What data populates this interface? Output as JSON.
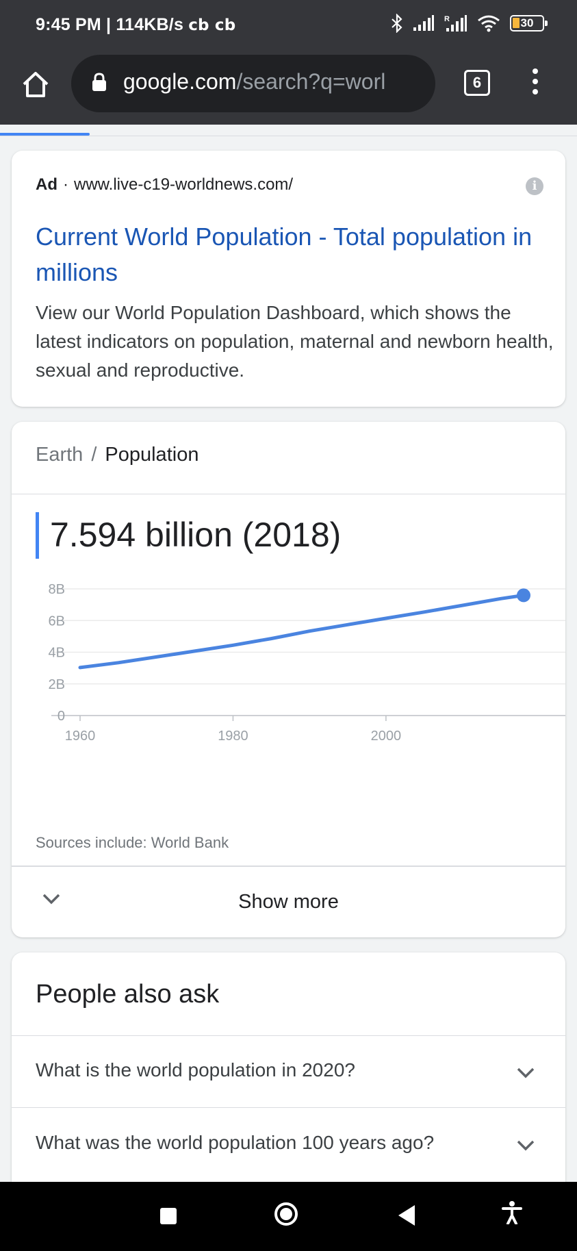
{
  "status_bar": {
    "time_network": "9:45 PM | 114KB/s",
    "extra": "cb cb",
    "battery": "30"
  },
  "browser": {
    "url_host": "google.com",
    "url_path": "/search?q=worl",
    "tab_count": "6"
  },
  "ad": {
    "label": "Ad",
    "separator": "·",
    "display_url": "www.live-c19-worldnews.com/",
    "title": "Current World Population - Total population in millions",
    "description": "View our World Population Dashboard, which shows the latest indicators on population, maternal and newborn health, sexual and reproductive."
  },
  "population": {
    "breadcrumb_parent": "Earth",
    "breadcrumb_sep": "/",
    "breadcrumb_current": "Population",
    "headline": "7.594 billion (2018)",
    "sources": "Sources include: World Bank",
    "show_more": "Show more"
  },
  "chart_data": {
    "type": "line",
    "title": "",
    "xlabel": "",
    "ylabel": "",
    "x": [
      1960,
      1965,
      1970,
      1975,
      1980,
      1985,
      1990,
      1995,
      2000,
      2005,
      2010,
      2015,
      2018
    ],
    "series": [
      {
        "values": [
          3.03,
          3.34,
          3.7,
          4.07,
          4.44,
          4.86,
          5.33,
          5.74,
          6.14,
          6.54,
          6.96,
          7.38,
          7.594
        ]
      }
    ],
    "xlim": [
      1960,
      2018
    ],
    "ylim": [
      0,
      8
    ],
    "y_ticks": [
      "0",
      "2B",
      "4B",
      "6B",
      "8B"
    ],
    "y_tick_values": [
      0,
      2,
      4,
      6,
      8
    ],
    "x_ticks": [
      "1960",
      "1980",
      "2000"
    ],
    "x_tick_values": [
      1960,
      1980,
      2000
    ],
    "grid": true,
    "line_color": "#4a84e0"
  },
  "people_also_ask": {
    "title": "People also ask",
    "questions": [
      "What is the world population in 2020?",
      "What was the world population 100 years ago?"
    ]
  },
  "colors": {
    "accent": "#4285f4",
    "link": "#1a56b4",
    "toolbar": "#35363a"
  }
}
